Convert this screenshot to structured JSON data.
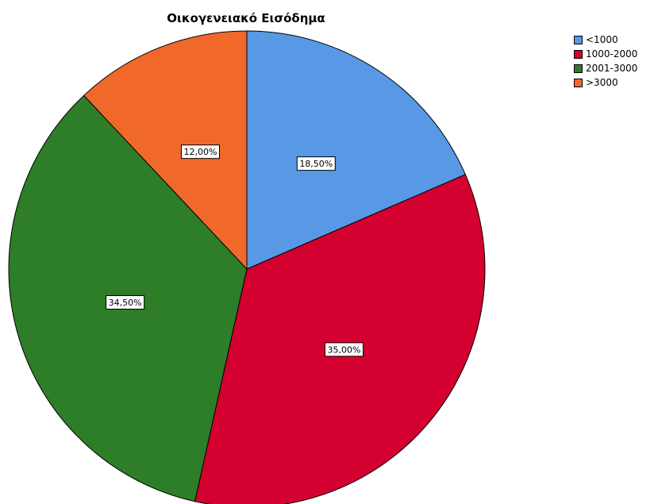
{
  "chart_data": {
    "type": "pie",
    "title": "Οικογενειακό Εισόδημα",
    "categories": [
      "<1000",
      "1000-2000",
      "2001-3000",
      ">3000"
    ],
    "values": [
      18.5,
      35.0,
      34.5,
      12.0
    ],
    "data_labels": [
      "18,50%",
      "35,00%",
      "34,50%",
      "12,00%"
    ],
    "colors": [
      "#5898e4",
      "#d4002f",
      "#2e7d28",
      "#f0692b"
    ],
    "legend": {
      "position": "top-right",
      "entries": [
        "<1000",
        "1000-2000",
        "2001-3000",
        ">3000"
      ]
    },
    "start_angle": "12 o'clock",
    "direction": "clockwise"
  }
}
